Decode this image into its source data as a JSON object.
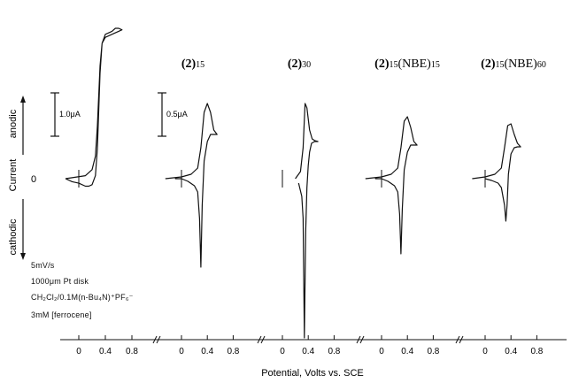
{
  "figure": {
    "y_axis_label": "Current",
    "anodic_label": "anodic",
    "cathodic_label": "cathodic",
    "zero_label": "0",
    "x_axis_label": "Potential, Volts vs. SCE",
    "scale_bars": [
      "1.0μA",
      "0.5μA"
    ],
    "conditions": [
      "5mV/s",
      "1000μm Pt disk",
      "CH₂Cl₂/0.1M(n-Bu₄N)⁺PF₆⁻",
      "3mM [ferrocene]"
    ]
  },
  "chart_data": [
    {
      "type": "line",
      "panel": "ferrocene",
      "title": "",
      "xlabel": "Potential, Volts vs. SCE",
      "ylabel": "Current",
      "xlim": [
        -0.3,
        0.7
      ],
      "xticks": [
        "0",
        "0.4",
        "0.8"
      ],
      "scale_bar": "1.0μA",
      "series": [
        {
          "x": [
            -0.2,
            0.1,
            0.2,
            0.25,
            0.28,
            0.3,
            0.32,
            0.35,
            0.4,
            0.5,
            0.55,
            0.6,
            0.65,
            0.6,
            0.5,
            0.4,
            0.35,
            0.32,
            0.3,
            0.28,
            0.25,
            0.2,
            0.15,
            0.1,
            0.0,
            -0.1,
            -0.2
          ],
          "y": [
            0,
            0.02,
            0.06,
            0.15,
            0.35,
            0.55,
            0.75,
            0.9,
            0.96,
            0.98,
            1.0,
            1.0,
            0.99,
            0.98,
            0.96,
            0.94,
            0.9,
            0.7,
            0.45,
            0.2,
            0.02,
            -0.04,
            -0.05,
            -0.05,
            -0.03,
            -0.02,
            0
          ]
        }
      ]
    },
    {
      "type": "line",
      "panel": "(2)15",
      "title": "(2)15",
      "xlim": [
        -0.3,
        0.8
      ],
      "xticks": [
        "0",
        "0.4",
        "0.8"
      ],
      "scale_bar": "0.5μA",
      "series": [
        {
          "x": [
            -0.25,
            0.0,
            0.15,
            0.25,
            0.3,
            0.35,
            0.4,
            0.45,
            0.5,
            0.55,
            0.5,
            0.45,
            0.4,
            0.35,
            0.32,
            0.3,
            0.28,
            0.25,
            0.2,
            0.1,
            0.0,
            -0.1
          ],
          "y": [
            0,
            0.02,
            0.05,
            0.12,
            0.35,
            0.75,
            0.85,
            0.75,
            0.55,
            0.5,
            0.5,
            0.5,
            0.42,
            0.2,
            -0.3,
            -1.0,
            -0.45,
            -0.15,
            -0.08,
            -0.03,
            0,
            0
          ]
        }
      ]
    },
    {
      "type": "line",
      "panel": "(2)30",
      "title": "(2)30",
      "xlim": [
        -0.3,
        0.8
      ],
      "xticks": [
        "0",
        "0.4",
        "0.8"
      ],
      "series": [
        {
          "x": [
            0.2,
            0.28,
            0.32,
            0.35,
            0.38,
            0.42,
            0.46,
            0.5,
            0.55,
            0.5,
            0.45,
            0.42,
            0.4,
            0.38,
            0.36,
            0.34,
            0.32,
            0.3,
            0.25
          ],
          "y": [
            0,
            0.08,
            0.35,
            0.85,
            0.8,
            0.55,
            0.45,
            0.43,
            0.42,
            0.42,
            0.4,
            0.3,
            0.15,
            -0.1,
            -0.6,
            -1.8,
            -0.45,
            -0.2,
            -0.05
          ]
        }
      ]
    },
    {
      "type": "line",
      "panel": "(2)15(NBE)15",
      "title": "(2)15(NBE)15",
      "xlim": [
        -0.3,
        0.8
      ],
      "xticks": [
        "0",
        "0.4",
        "0.8"
      ],
      "series": [
        {
          "x": [
            -0.25,
            0.0,
            0.15,
            0.25,
            0.3,
            0.35,
            0.4,
            0.45,
            0.5,
            0.55,
            0.5,
            0.45,
            0.4,
            0.35,
            0.32,
            0.3,
            0.28,
            0.25,
            0.2,
            0.1,
            0.0,
            -0.1
          ],
          "y": [
            0,
            0.02,
            0.05,
            0.12,
            0.35,
            0.65,
            0.7,
            0.58,
            0.42,
            0.38,
            0.38,
            0.38,
            0.3,
            0.1,
            -0.35,
            -0.85,
            -0.4,
            -0.15,
            -0.08,
            -0.03,
            0,
            0
          ]
        }
      ]
    },
    {
      "type": "line",
      "panel": "(2)15(NBE)60",
      "title": "(2)15(NBE)60",
      "xlim": [
        -0.3,
        0.8
      ],
      "xticks": [
        "0",
        "0.4",
        "0.8"
      ],
      "series": [
        {
          "x": [
            -0.2,
            0.0,
            0.15,
            0.25,
            0.3,
            0.35,
            0.4,
            0.45,
            0.5,
            0.55,
            0.5,
            0.45,
            0.4,
            0.36,
            0.34,
            0.32,
            0.3,
            0.25,
            0.2,
            0.1,
            0.0
          ],
          "y": [
            0,
            0.02,
            0.05,
            0.12,
            0.35,
            0.6,
            0.62,
            0.5,
            0.4,
            0.36,
            0.36,
            0.35,
            0.28,
            0.05,
            -0.3,
            -0.48,
            -0.3,
            -0.1,
            -0.05,
            -0.02,
            0
          ]
        }
      ]
    }
  ]
}
